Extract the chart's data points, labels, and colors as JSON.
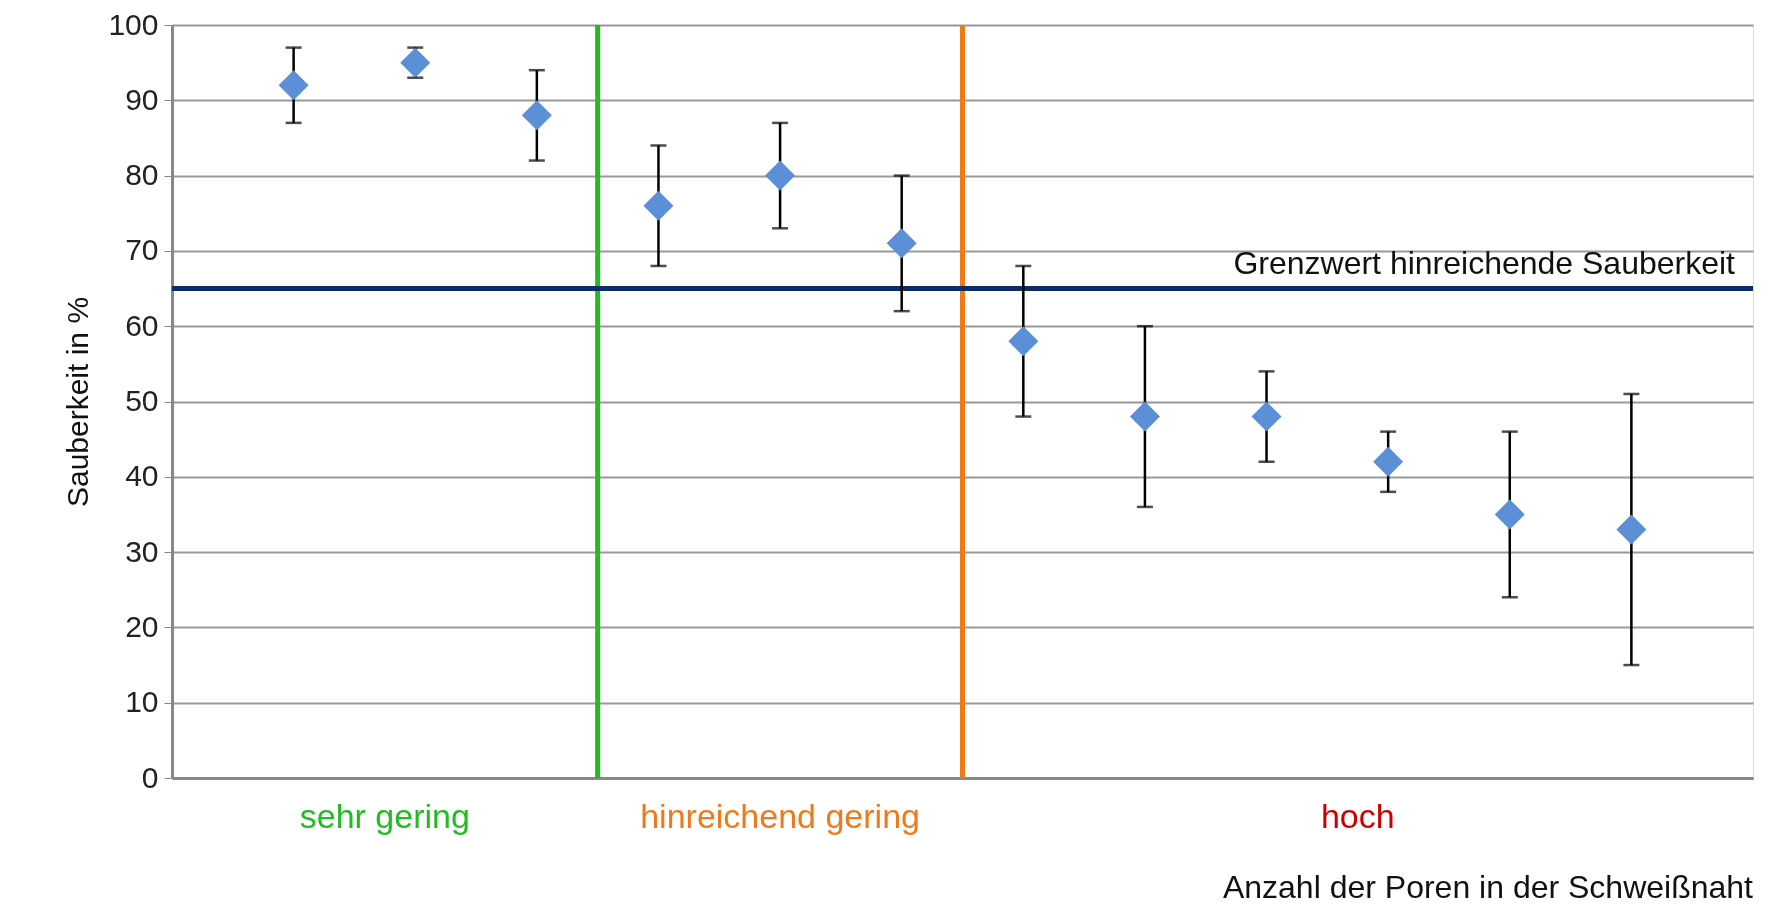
{
  "chart_data": {
    "type": "scatter",
    "categories": [
      null,
      null,
      null,
      null,
      null,
      null,
      null,
      null,
      null,
      null,
      null,
      null
    ],
    "values": [
      92,
      95,
      88,
      76,
      80,
      71,
      58,
      48,
      48,
      42,
      35,
      33
    ],
    "errors": [
      [
        87,
        97
      ],
      [
        93,
        97
      ],
      [
        82,
        94
      ],
      [
        68,
        84
      ],
      [
        73,
        87
      ],
      [
        62,
        80
      ],
      [
        48,
        68
      ],
      [
        36,
        60
      ],
      [
        42,
        54
      ],
      [
        38,
        46
      ],
      [
        24,
        46
      ],
      [
        15,
        51
      ]
    ],
    "color": "#5b8fd6",
    "marker": "diamond",
    "ylim": [
      0,
      100
    ],
    "yticks": [
      0,
      10,
      20,
      30,
      40,
      50,
      60,
      70,
      80,
      90,
      100
    ],
    "tick_labels": "y",
    "grid": "y",
    "ylabel": "Sauberkeit in %",
    "xlabel": "Anzahl der Poren in der Schweißnaht",
    "ref_lines": [
      {
        "axis": "y",
        "value": 65,
        "label": "Grenzwert hinreichende Sauberkeit",
        "color": "#0d2a6b"
      }
    ],
    "annotations": [
      "sehr gering",
      "hinreichend gering",
      "hoch"
    ]
  }
}
